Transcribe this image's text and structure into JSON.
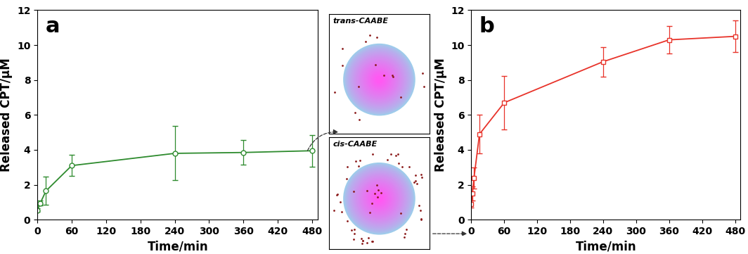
{
  "chart_data": [
    {
      "type": "line",
      "annotations": [
        "a"
      ],
      "x_label": "Time/min",
      "y_label": "Released CPT/μM",
      "x": [
        0,
        5,
        15,
        60,
        240,
        360,
        480
      ],
      "series": [
        {
          "color": "#2e8b2e",
          "marker": "o",
          "line_style": "solid",
          "values": [
            0.55,
            0.95,
            1.65,
            3.1,
            3.8,
            3.85,
            3.95
          ],
          "errors": [
            0.1,
            0.15,
            0.8,
            0.6,
            1.55,
            0.7,
            0.9
          ]
        }
      ],
      "xlim": [
        0,
        490
      ],
      "xticks": [
        0,
        60,
        120,
        180,
        240,
        300,
        360,
        420,
        480
      ],
      "ylim": [
        0,
        12
      ],
      "yticks": [
        0,
        2,
        4,
        6,
        8,
        10,
        12
      ],
      "grid": false
    },
    {
      "type": "line",
      "annotations": [
        "b"
      ],
      "x_label": "Time/min",
      "y_label": "Released CPT/μM",
      "x": [
        0,
        2,
        5,
        15,
        60,
        240,
        360,
        480
      ],
      "series": [
        {
          "color": "#e8332a",
          "marker": "s",
          "line_style": "solid",
          "values": [
            0.9,
            1.5,
            2.4,
            4.9,
            6.7,
            9.05,
            10.3,
            10.5
          ],
          "errors": [
            0.2,
            0.4,
            0.6,
            1.1,
            1.55,
            0.85,
            0.8,
            0.9
          ]
        }
      ],
      "xlim": [
        0,
        490
      ],
      "xticks": [
        0,
        60,
        120,
        180,
        240,
        300,
        360,
        420,
        480
      ],
      "ylim": [
        0,
        12
      ],
      "yticks": [
        0,
        2,
        4,
        6,
        8,
        10,
        12
      ],
      "grid": false
    }
  ],
  "schematic": {
    "panels": [
      "trans-CAABE",
      "cis-CAABE"
    ]
  }
}
